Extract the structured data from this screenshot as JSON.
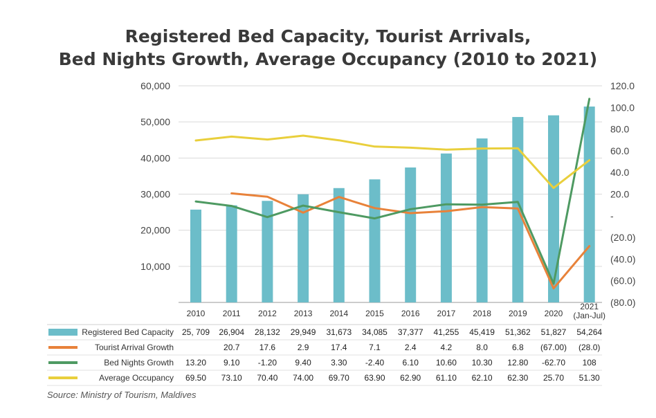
{
  "title_line1": "Registered Bed Capacity, Tourist Arrivals,",
  "title_line2": "Bed Nights Growth, Average Occupancy (2010 to 2021)",
  "source": "Source: Ministry of Tourism, Maldives",
  "chart_data": {
    "type": "bar+line",
    "categories": [
      "2010",
      "2011",
      "2012",
      "2013",
      "2014",
      "2015",
      "2016",
      "2017",
      "2018",
      "2019",
      "2020",
      "2021\n(Jan-Jul)"
    ],
    "left_axis": {
      "ylim": [
        0,
        60000
      ],
      "ticks": [
        "",
        "10,000",
        "20,000",
        "30,000",
        "40,000",
        "50,000",
        "60,000"
      ]
    },
    "right_axis": {
      "ylim": [
        -80,
        120
      ],
      "ticks": [
        "(80.0)",
        "(60.0)",
        "(40.0)",
        "(20.0)",
        "-",
        "20.0",
        "40.0",
        "60.0",
        "80.0",
        "100.0",
        "120.0"
      ]
    },
    "series": [
      {
        "name": "Registered Bed Capacity",
        "kind": "bar",
        "axis": "left",
        "color": "#6cbdc9",
        "values": [
          25709,
          26904,
          28132,
          29949,
          31673,
          34085,
          37377,
          41255,
          45419,
          51362,
          51827,
          54264
        ],
        "labels": [
          "25, 709",
          "26,904",
          "28,132",
          "29,949",
          "31,673",
          "34,085",
          "37,377",
          "41,255",
          "45,419",
          "51,362",
          "51,827",
          "54,264"
        ]
      },
      {
        "name": "Tourist Arrival Growth",
        "kind": "line",
        "axis": "right",
        "color": "#e8823a",
        "values": [
          null,
          20.7,
          17.6,
          2.9,
          17.4,
          7.1,
          2.4,
          4.2,
          8.0,
          6.8,
          -67.0,
          -28.0
        ],
        "labels": [
          "",
          "20.7",
          "17.6",
          "2.9",
          "17.4",
          "7.1",
          "2.4",
          "4.2",
          "8.0",
          "6.8",
          "(67.00)",
          "(28.0)"
        ]
      },
      {
        "name": "Bed Nights Growth",
        "kind": "line",
        "axis": "right",
        "color": "#4e9a62",
        "values": [
          13.2,
          9.1,
          -1.2,
          9.4,
          3.3,
          -2.4,
          6.1,
          10.6,
          10.3,
          12.8,
          -62.7,
          108
        ],
        "labels": [
          "13.20",
          "9.10",
          "-1.20",
          "9.40",
          "3.30",
          "-2.40",
          "6.10",
          "10.60",
          "10.30",
          "12.80",
          "-62.70",
          "108"
        ]
      },
      {
        "name": "Average Occupancy",
        "kind": "line",
        "axis": "right",
        "color": "#e9cf3c",
        "values": [
          69.5,
          73.1,
          70.4,
          74.0,
          69.7,
          63.9,
          62.9,
          61.1,
          62.1,
          62.3,
          25.7,
          51.3
        ],
        "labels": [
          "69.50",
          "73.10",
          "70.40",
          "74.00",
          "69.70",
          "63.90",
          "62.90",
          "61.10",
          "62.10",
          "62.30",
          "25.70",
          "51.30"
        ]
      }
    ],
    "grid": true,
    "legend": "data-table-below"
  }
}
